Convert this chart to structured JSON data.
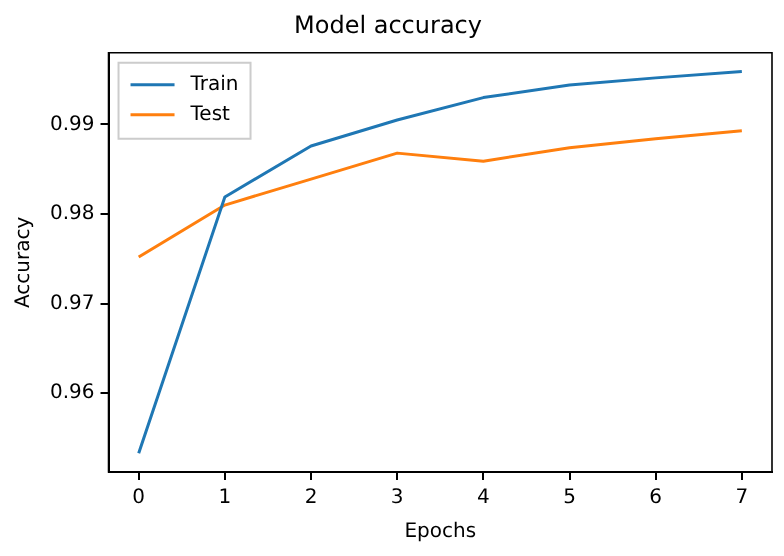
{
  "chart_data": {
    "type": "line",
    "title": "Model accuracy",
    "xlabel": "Epochs",
    "ylabel": "Accuracy",
    "x": [
      0,
      1,
      2,
      3,
      4,
      5,
      6,
      7
    ],
    "series": [
      {
        "name": "Train",
        "color": "#1f77b4",
        "values": [
          0.9533,
          0.9819,
          0.9876,
          0.9905,
          0.993,
          0.9944,
          0.9952,
          0.9959
        ]
      },
      {
        "name": "Test",
        "color": "#ff7f0e",
        "values": [
          0.9752,
          0.981,
          0.9839,
          0.9868,
          0.9859,
          0.9874,
          0.9884,
          0.9893
        ]
      }
    ],
    "xlim": [
      -0.35,
      7.35
    ],
    "xticks": [
      0,
      1,
      2,
      3,
      4,
      5,
      6,
      7
    ],
    "ylim": [
      0.9512,
      0.998
    ],
    "yticks": [
      0.96,
      0.97,
      0.98,
      0.99
    ],
    "grid": false,
    "legend": "top left",
    "marker": "none",
    "line_style": "solid"
  }
}
